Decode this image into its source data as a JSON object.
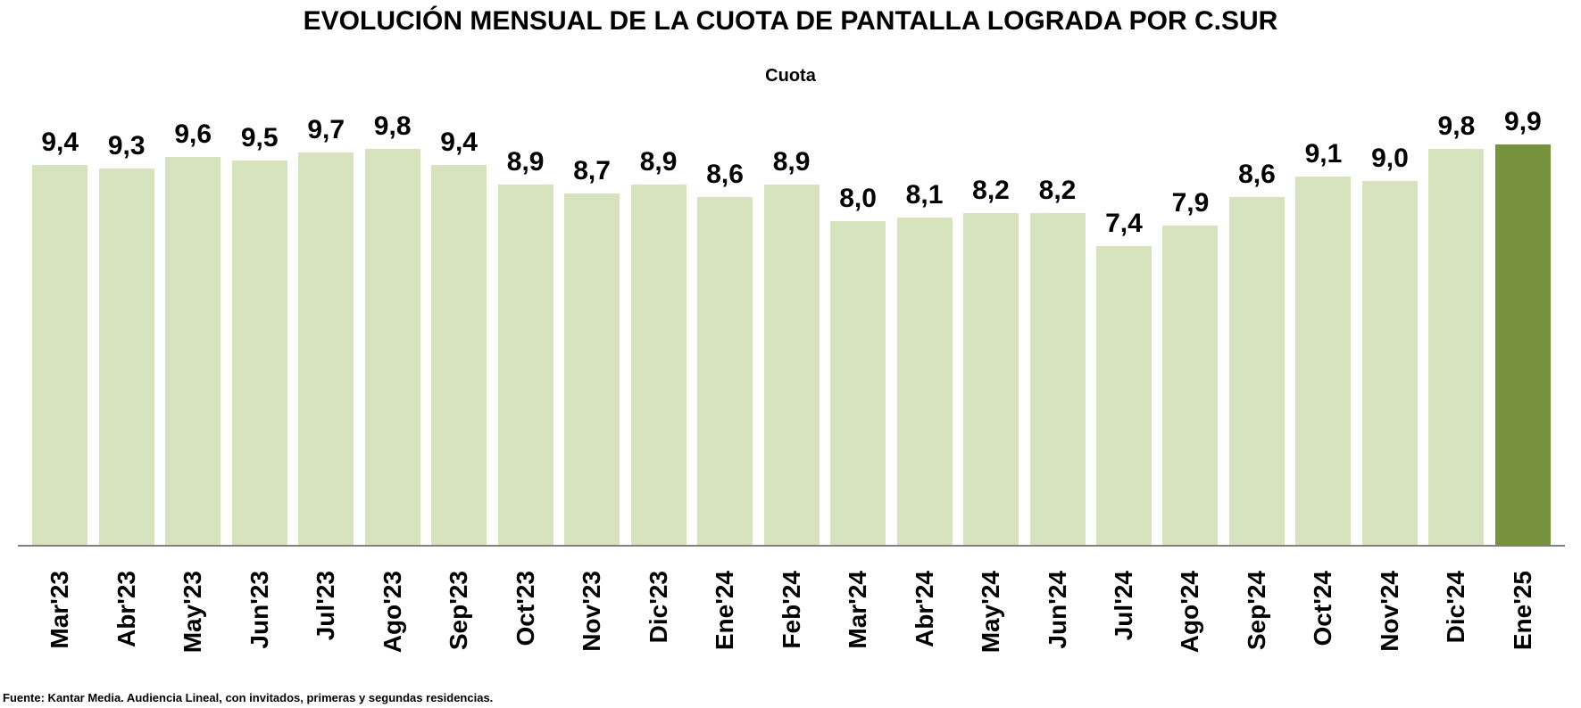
{
  "header": {
    "title": "EVOLUCIÓN MENSUAL DE LA CUOTA DE PANTALLA LOGRADA POR C.SUR",
    "subtitle": "Cuota"
  },
  "footer": {
    "source_note": "Fuente: Kantar Media. Audiencia Lineal, con invitados, primeras y segundas residencias."
  },
  "colors": {
    "bar": "#D6E3BC",
    "bar_highlight": "#76923C",
    "axis_line": "#808080",
    "text": "#000000",
    "background": "#FFFFFF"
  },
  "chart_data": {
    "type": "bar",
    "title": "EVOLUCIÓN MENSUAL DE LA CUOTA DE PANTALLA LOGRADA POR C.SUR",
    "subtitle": "Cuota",
    "categories": [
      "Mar'23",
      "Abr'23",
      "May'23",
      "Jun'23",
      "Jul'23",
      "Ago'23",
      "Sep'23",
      "Oct'23",
      "Nov'23",
      "Dic'23",
      "Ene'24",
      "Feb'24",
      "Mar'24",
      "Abr'24",
      "May'24",
      "Jun'24",
      "Jul'24",
      "Ago'24",
      "Sep'24",
      "Oct'24",
      "Nov'24",
      "Dic'24",
      "Ene'25"
    ],
    "values": [
      9.4,
      9.3,
      9.6,
      9.5,
      9.7,
      9.8,
      9.4,
      8.9,
      8.7,
      8.9,
      8.6,
      8.9,
      8.0,
      8.1,
      8.2,
      8.2,
      7.4,
      7.9,
      8.6,
      9.1,
      9.0,
      9.8,
      9.9
    ],
    "value_labels": [
      "9,4",
      "9,3",
      "9,6",
      "9,5",
      "9,7",
      "9,8",
      "9,4",
      "8,9",
      "8,7",
      "8,9",
      "8,6",
      "8,9",
      "8,0",
      "8,1",
      "8,2",
      "8,2",
      "7,4",
      "7,9",
      "8,6",
      "9,1",
      "9,0",
      "9,8",
      "9,9"
    ],
    "xlabel": "",
    "ylabel": "",
    "ylim": [
      0,
      9.9
    ],
    "grid": false,
    "legend": false,
    "data_labels": true,
    "x_tick_rotation": 90,
    "bar_color": "#D6E3BC",
    "highlight_color": "#76923C",
    "highlight_index": 22,
    "highlighted_category": "Ene'25"
  }
}
